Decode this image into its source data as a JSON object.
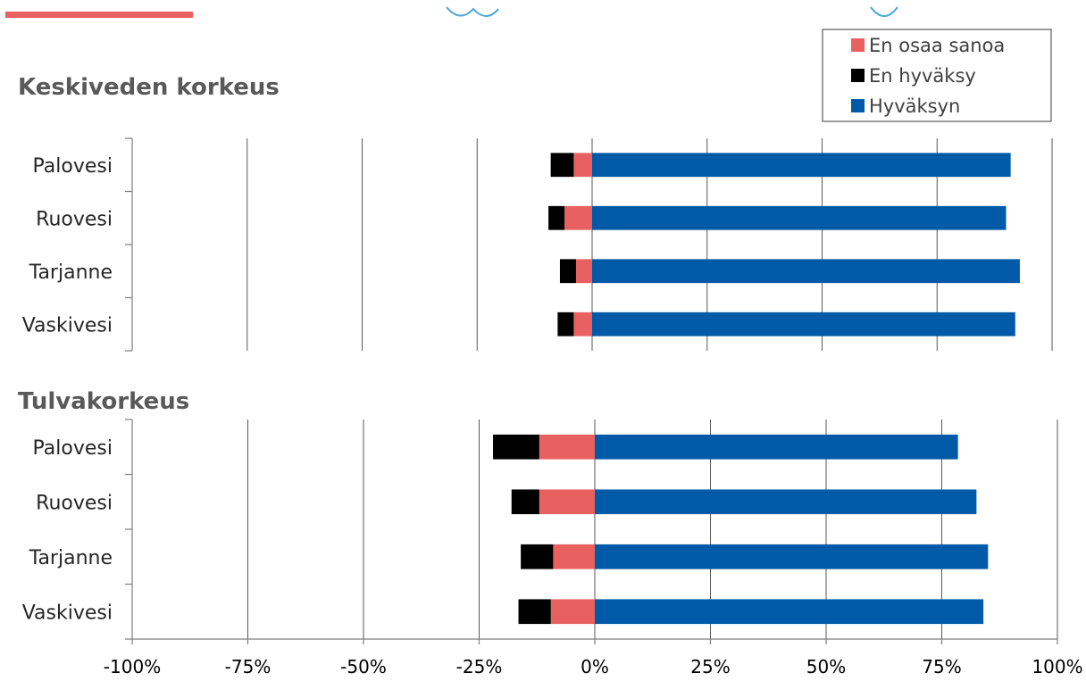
{
  "colors": {
    "en_osaa_sanoa": "#E8605F",
    "en_hyvaksy": "#000000",
    "hyvaksyn": "#005AA8",
    "accent": "#E8605F",
    "decor": "#4AA8D8",
    "grid": "#595959"
  },
  "chart_data": [
    {
      "type": "bar",
      "orientation": "horizontal",
      "stacked": "diverging",
      "title": "Keskiveden korkeus",
      "categories": [
        "Palovesi",
        "Ruovesi",
        "Tarjanne",
        "Vaskivesi"
      ],
      "series": [
        {
          "name": "En osaa sanoa",
          "values": [
            -4,
            -6,
            -3.5,
            -4
          ]
        },
        {
          "name": "En hyväksy",
          "values": [
            -5,
            -3.5,
            -3.5,
            -3.5
          ]
        },
        {
          "name": "Hyväksyn",
          "values": [
            91,
            90,
            93,
            92
          ]
        }
      ],
      "xlim": [
        -100,
        100
      ],
      "grid": true
    },
    {
      "type": "bar",
      "orientation": "horizontal",
      "stacked": "diverging",
      "title": "Tulvakorkeus",
      "categories": [
        "Palovesi",
        "Ruovesi",
        "Tarjanne",
        "Vaskivesi"
      ],
      "series": [
        {
          "name": "En osaa sanoa",
          "values": [
            -12,
            -12,
            -9,
            -9.5
          ]
        },
        {
          "name": "En hyväksy",
          "values": [
            -10,
            -6,
            -7,
            -7
          ]
        },
        {
          "name": "Hyväksyn",
          "values": [
            78.5,
            82.5,
            85,
            84
          ]
        }
      ],
      "xlim": [
        -100,
        100
      ],
      "xticks": [
        "-100%",
        "-75%",
        "-50%",
        "-25%",
        "0%",
        "25%",
        "50%",
        "75%",
        "100%"
      ],
      "grid": true
    }
  ],
  "legend": {
    "position": "top-right",
    "entries": [
      "En osaa sanoa",
      "En hyväksy",
      "Hyväksyn"
    ]
  }
}
